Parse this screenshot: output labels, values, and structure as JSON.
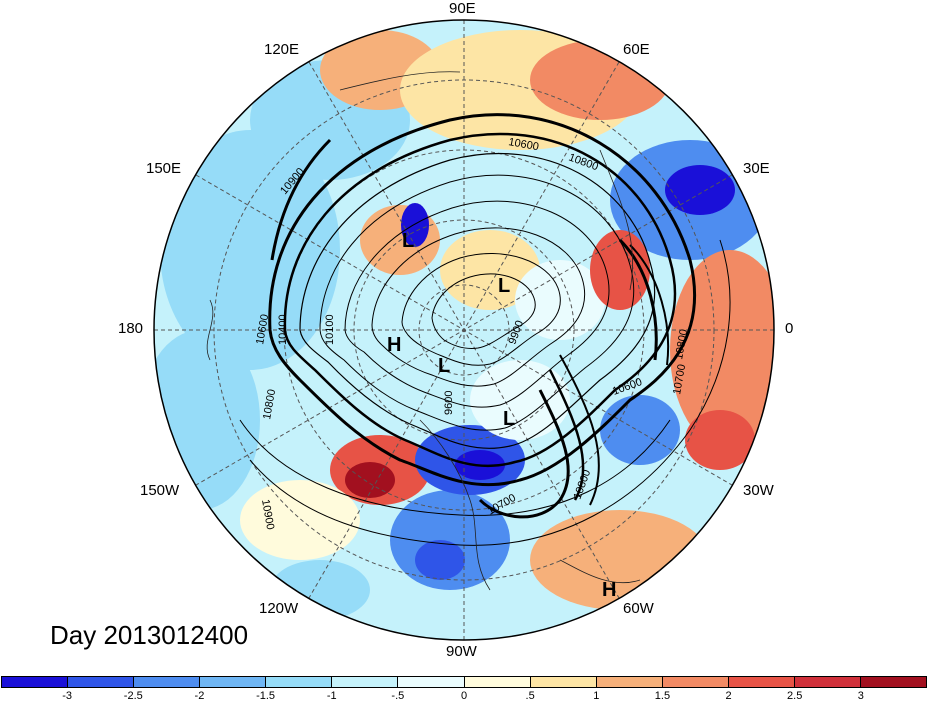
{
  "title": "Day 2013012400",
  "longitude_labels": {
    "top": "90E",
    "top_left": "120E",
    "top_right": "60E",
    "upper_left": "150E",
    "upper_right": "30E",
    "left": "180",
    "right": "0",
    "lower_left": "150W",
    "lower_right": "30W",
    "bottom_left": "120W",
    "bottom_right": "60W",
    "bottom": "90W"
  },
  "pressure_centers": {
    "l1": "L",
    "l2": "L",
    "l3": "L",
    "l4": "L",
    "h1": "H",
    "h2": "H"
  },
  "contour_labels": {
    "c1": "10900",
    "c2": "10400",
    "c3": "10100",
    "c4": "10600",
    "c5": "10800",
    "c6": "9600",
    "c7": "9900",
    "c8": "10600",
    "c9": "10700",
    "c10": "10800",
    "c11": "10900",
    "c12": "10700",
    "c13": "10800",
    "c14": "10800",
    "c15": "10600"
  },
  "colorbar": {
    "colors": [
      "#1a10d8",
      "#2f55e8",
      "#4e8df0",
      "#6fb6f4",
      "#96dcf8",
      "#c5f2fb",
      "#eafcfe",
      "#fffbdc",
      "#fde5a5",
      "#f6b07a",
      "#f28a64",
      "#e75346",
      "#d0303a",
      "#a2101f"
    ],
    "ticks": [
      "-3",
      "-2.5",
      "-2",
      "-1.5",
      "-1",
      "-.5",
      "0",
      ".5",
      "1",
      "1.5",
      "2",
      "2.5",
      "3"
    ]
  }
}
